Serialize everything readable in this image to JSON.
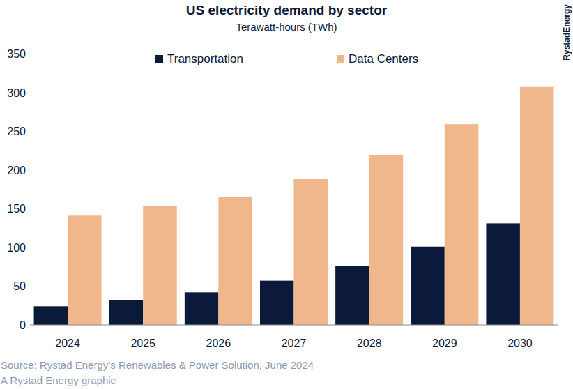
{
  "chart_data": {
    "type": "bar",
    "title": "US electricity demand by sector",
    "subtitle": "Terawatt-hours (TWh)",
    "source": "Source: Rystad Energy’s Renewables & Power Solution, June 2024",
    "credit": "A Rystad Energy graphic",
    "logo": "RystadEnergy",
    "categories": [
      "2024",
      "2025",
      "2026",
      "2027",
      "2028",
      "2029",
      "2030"
    ],
    "series": [
      {
        "name": "Transportation",
        "color": "#0b1a3b",
        "values": [
          24,
          32,
          42,
          57,
          76,
          101,
          131
        ]
      },
      {
        "name": "Data Centers",
        "color": "#f0b68c",
        "values": [
          141,
          153,
          165,
          188,
          219,
          259,
          307
        ]
      }
    ],
    "ylim": [
      0,
      350
    ],
    "yticks": [
      0,
      50,
      100,
      150,
      200,
      250,
      300,
      350
    ],
    "grid": false,
    "legend": "top"
  }
}
